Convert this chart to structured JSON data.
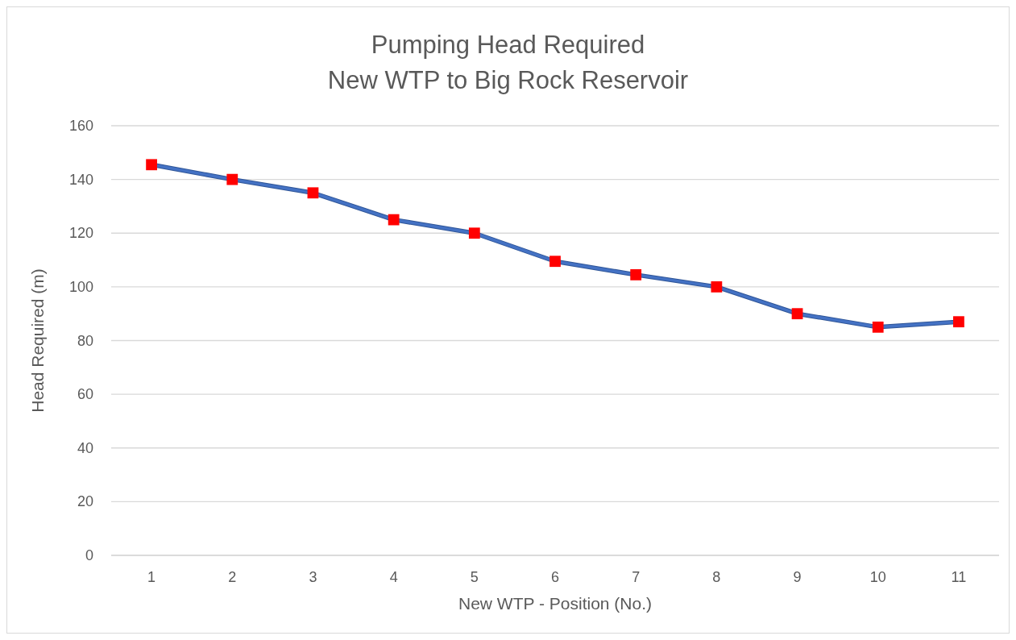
{
  "chart_data": {
    "type": "line",
    "title": "Pumping Head Required\nNew WTP to Big Rock Reservoir",
    "xlabel": "New WTP - Position (No.)",
    "ylabel": "Head Required (m)",
    "categories": [
      "1",
      "2",
      "3",
      "4",
      "5",
      "6",
      "7",
      "8",
      "9",
      "10",
      "11"
    ],
    "series": [
      {
        "color": "#4472c4",
        "colors": [
          "#ff0000",
          "#ff0000",
          "#ff0000",
          "#ff0000",
          "#ff0000",
          "#ff0000",
          "#ff0000",
          "#ff0000",
          "#ff0000",
          "#ff0000",
          "#ff0000"
        ],
        "values": [
          145.5,
          140,
          135,
          125,
          120,
          109.5,
          104.5,
          100,
          90,
          85,
          87
        ]
      }
    ],
    "ylim": [
      0,
      160
    ],
    "yticks": [
      0,
      20,
      40,
      60,
      80,
      100,
      120,
      140,
      160
    ],
    "grid": "y",
    "marker": "square",
    "line_style": "solid"
  }
}
